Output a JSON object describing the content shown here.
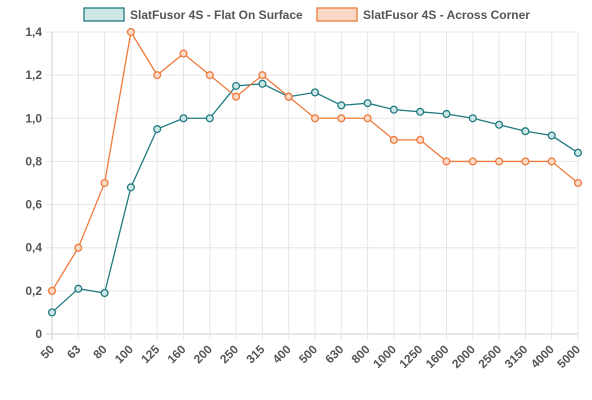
{
  "chart_data": {
    "type": "line",
    "categories": [
      "50",
      "63",
      "80",
      "100",
      "125",
      "160",
      "200",
      "250",
      "315",
      "400",
      "500",
      "630",
      "800",
      "1000",
      "1250",
      "1600",
      "2000",
      "2500",
      "3150",
      "4000",
      "5000"
    ],
    "series": [
      {
        "name": "SlatFusor 4S - Flat On Surface",
        "color": "#1f7a80",
        "fill": "#cfe6e6",
        "values": [
          0.1,
          0.21,
          0.19,
          0.68,
          0.95,
          1.0,
          1.0,
          1.15,
          1.16,
          1.1,
          1.12,
          1.06,
          1.07,
          1.04,
          1.03,
          1.02,
          1.0,
          0.97,
          0.94,
          0.92,
          0.84
        ]
      },
      {
        "name": "SlatFusor 4S - Across Corner",
        "color": "#ef7a3c",
        "fill": "#fbd9c7",
        "values": [
          0.2,
          0.4,
          0.7,
          1.4,
          1.2,
          1.3,
          1.2,
          1.1,
          1.2,
          1.1,
          1.0,
          1.0,
          1.0,
          0.9,
          0.9,
          0.8,
          0.8,
          0.8,
          0.8,
          0.8,
          0.7
        ]
      }
    ],
    "yticks": [
      "0",
      "0,2",
      "0,4",
      "0,6",
      "0,8",
      "1,0",
      "1,2",
      "1,4"
    ],
    "ylim": [
      0,
      1.4
    ],
    "grid": true,
    "legend_position": "top"
  }
}
